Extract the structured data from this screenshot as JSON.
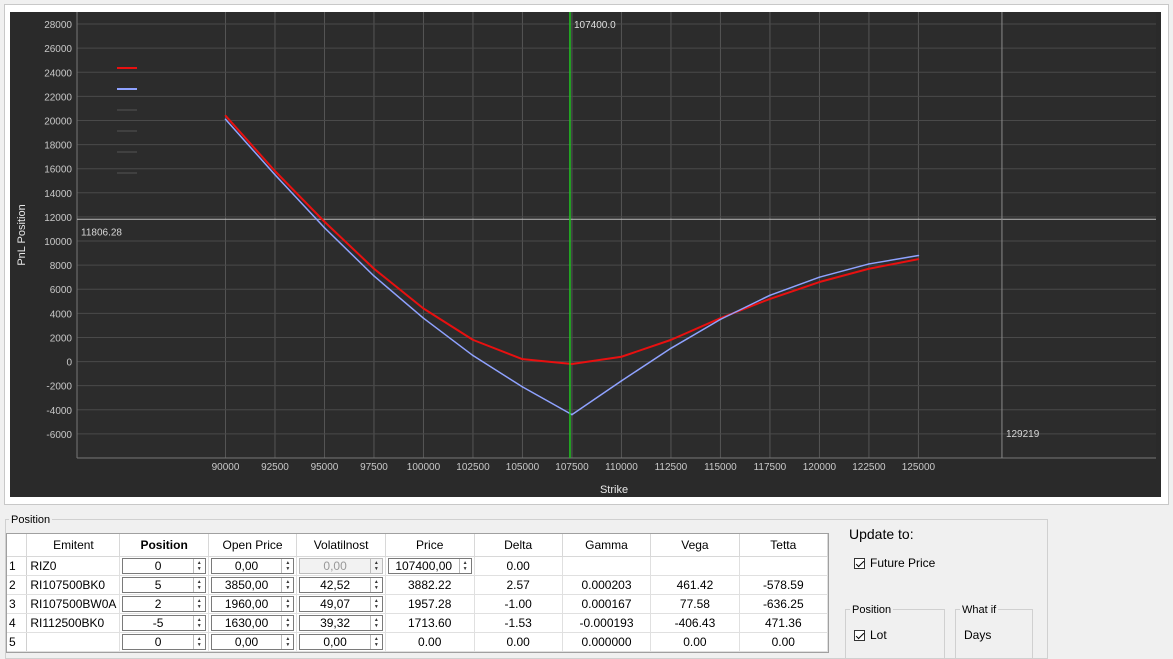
{
  "chart_data": {
    "type": "line",
    "xlabel": "Strike",
    "ylabel": "PnL Position",
    "xlim": [
      82500,
      137000
    ],
    "ylim": [
      -8000,
      29000
    ],
    "x_ticks": [
      90000,
      92500,
      95000,
      97500,
      100000,
      102500,
      105000,
      107500,
      110000,
      112500,
      115000,
      117500,
      120000,
      122500,
      125000
    ],
    "y_ticks": [
      -6000,
      -4000,
      -2000,
      0,
      2000,
      4000,
      6000,
      8000,
      10000,
      12000,
      14000,
      16000,
      18000,
      20000,
      22000,
      24000,
      26000,
      28000
    ],
    "series": [
      {
        "color": "#e81010",
        "x": [
          90000,
          92500,
          95000,
          97500,
          100000,
          102500,
          105000,
          107500,
          110000,
          112500,
          115000,
          117500,
          120000,
          122500,
          125000
        ],
        "values": [
          20400,
          15800,
          11600,
          7700,
          4400,
          1800,
          200,
          -200,
          400,
          1800,
          3600,
          5200,
          6600,
          7700,
          8500
        ]
      },
      {
        "color": "#8fa2ff",
        "x": [
          90000,
          92500,
          95000,
          97500,
          100000,
          102500,
          105000,
          107500,
          110000,
          112500,
          115000,
          117500,
          120000,
          122500,
          125000
        ],
        "values": [
          20100,
          15500,
          11100,
          7100,
          3600,
          500,
          -2100,
          -4400,
          -1600,
          1100,
          3500,
          5500,
          7000,
          8100,
          8800
        ]
      }
    ],
    "vline": {
      "x": 107400,
      "label": "107400.0",
      "color": "#1fc81f"
    },
    "vline2": {
      "x": 129219,
      "label": "129219"
    },
    "hline": {
      "y": 11806.28,
      "label": "11806.28"
    },
    "grid": true,
    "legend_position": "top-left"
  },
  "position": {
    "group_title": "Position",
    "columns": [
      "Emitent",
      "Position",
      "Open Price",
      "Volatilnost",
      "Price",
      "Delta",
      "Gamma",
      "Vega",
      "Tetta"
    ],
    "rows": [
      {
        "num": "1",
        "emitent": "RIZ0",
        "position": "0",
        "open_price": "0,00",
        "vol": "0,00",
        "price": "107400,00",
        "delta": "0.00",
        "gamma": "",
        "vega": "",
        "tetta": ""
      },
      {
        "num": "2",
        "emitent": "RI107500BK0",
        "position": "5",
        "open_price": "3850,00",
        "vol": "42,52",
        "price": "3882.22",
        "delta": "2.57",
        "gamma": "0.000203",
        "vega": "461.42",
        "tetta": "-578.59"
      },
      {
        "num": "3",
        "emitent": "RI107500BW0A",
        "position": "2",
        "open_price": "1960,00",
        "vol": "49,07",
        "price": "1957.28",
        "delta": "-1.00",
        "gamma": "0.000167",
        "vega": "77.58",
        "tetta": "-636.25"
      },
      {
        "num": "4",
        "emitent": "RI112500BK0",
        "position": "-5",
        "open_price": "1630,00",
        "vol": "39,32",
        "price": "1713.60",
        "delta": "-1.53",
        "gamma": "-0.000193",
        "vega": "-406.43",
        "tetta": "471.36"
      },
      {
        "num": "5",
        "emitent": "",
        "position": "0",
        "open_price": "0,00",
        "vol": "0,00",
        "price": "0.00",
        "delta": "0.00",
        "gamma": "0.000000",
        "vega": "0.00",
        "tetta": "0.00"
      }
    ]
  },
  "update": {
    "title": "Update to:",
    "future_price": "Future Price",
    "position_group": "Position",
    "lot": "Lot",
    "whatif_group": "What if",
    "days": "Days"
  }
}
